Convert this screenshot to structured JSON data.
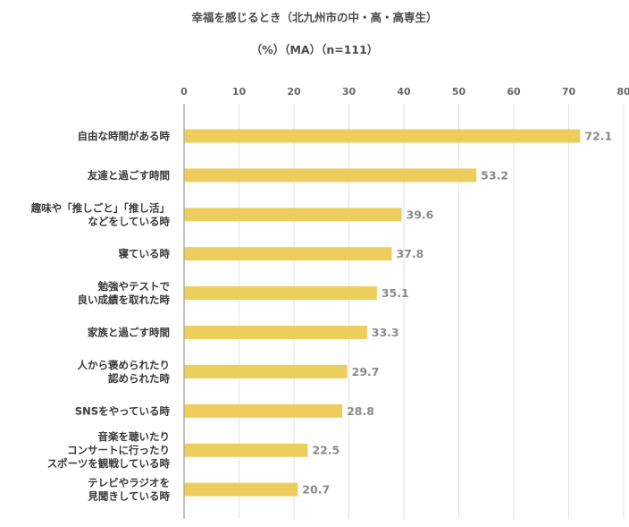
{
  "chart_data": {
    "type": "bar",
    "orientation": "horizontal",
    "title": "幸福を感じるとき（北九州市の中・高・高専生）",
    "subtitle": "（%）（MA）（n=111）",
    "xlim": [
      0,
      80
    ],
    "xticks": [
      0,
      10,
      20,
      30,
      40,
      50,
      60,
      70,
      80
    ],
    "grid": true,
    "bar_color": "#EDCD5B",
    "categories": [
      [
        "自由な時間がある時"
      ],
      [
        "友達と過ごす時間"
      ],
      [
        "趣味や「推しごと」「推し活」",
        "などをしている時"
      ],
      [
        "寝ている時"
      ],
      [
        "勉強やテストで",
        "良い成績を取れた時"
      ],
      [
        "家族と過ごす時間"
      ],
      [
        "人から褒められたり",
        "認められた時"
      ],
      [
        "SNSをやっている時"
      ],
      [
        "音楽を聴いたり",
        "コンサートに行ったり",
        "スポーツを観戦している時"
      ],
      [
        "テレビやラジオを",
        "見聞きしている時"
      ]
    ],
    "values": [
      72.1,
      53.2,
      39.6,
      37.8,
      35.1,
      33.3,
      29.7,
      28.8,
      22.5,
      20.7
    ],
    "value_labels": [
      "72.1",
      "53.2",
      "39.6",
      "37.8",
      "35.1",
      "33.3",
      "29.7",
      "28.8",
      "22.5",
      "20.7"
    ]
  }
}
